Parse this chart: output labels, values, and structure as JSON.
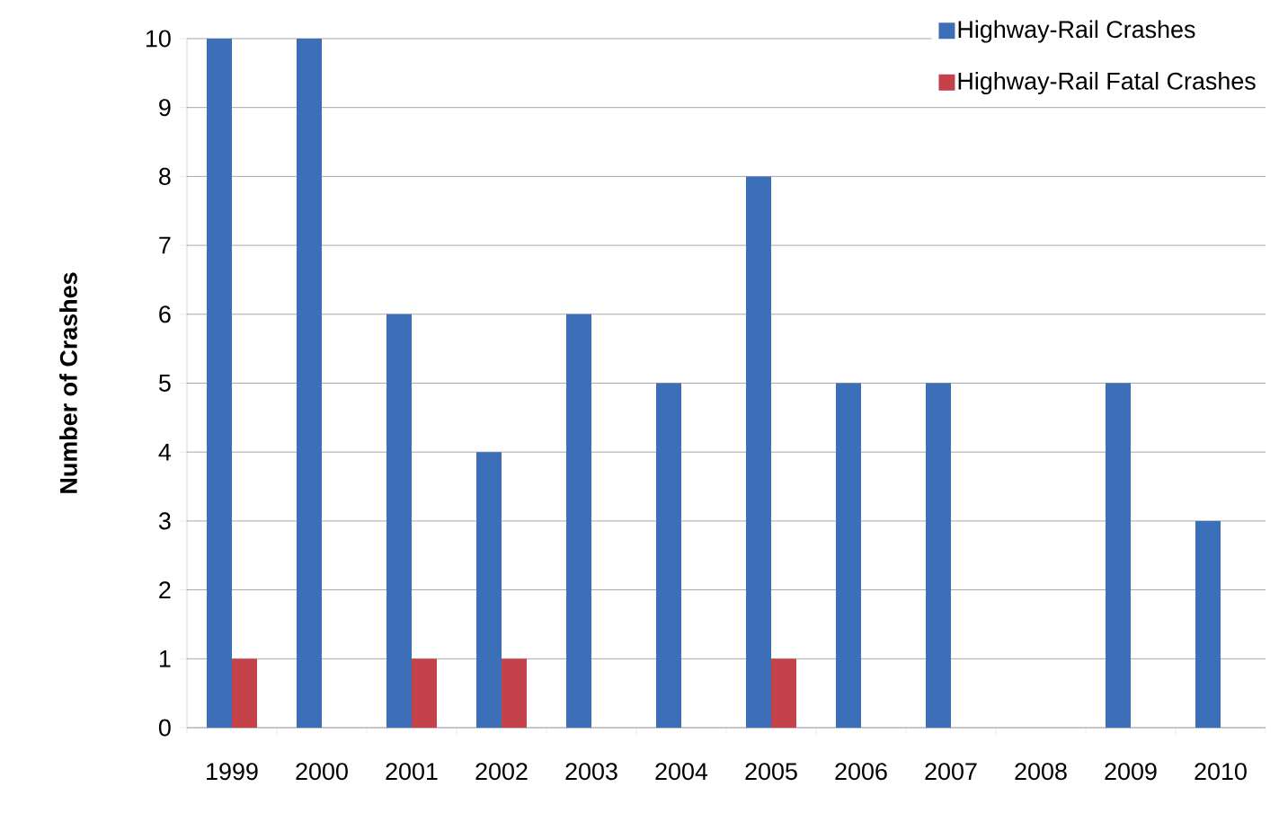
{
  "chart_data": {
    "type": "bar",
    "ylabel": "Number of Crashes",
    "categories": [
      "1999",
      "2000",
      "2001",
      "2002",
      "2003",
      "2004",
      "2005",
      "2006",
      "2007",
      "2008",
      "2009",
      "2010"
    ],
    "series": [
      {
        "name": "Highway-Rail Crashes",
        "color": "#3d6fb8",
        "values": [
          10,
          10,
          6,
          4,
          6,
          5,
          8,
          5,
          5,
          0,
          5,
          3
        ]
      },
      {
        "name": "Highway-Rail Fatal Crashes",
        "color": "#c4424a",
        "values": [
          1,
          0,
          1,
          1,
          0,
          0,
          1,
          0,
          0,
          0,
          0,
          0
        ]
      }
    ],
    "ylim": [
      0,
      10
    ],
    "yticks": [
      0,
      1,
      2,
      3,
      4,
      5,
      6,
      7,
      8,
      9,
      10
    ],
    "grid": "y",
    "legend": "top right"
  }
}
